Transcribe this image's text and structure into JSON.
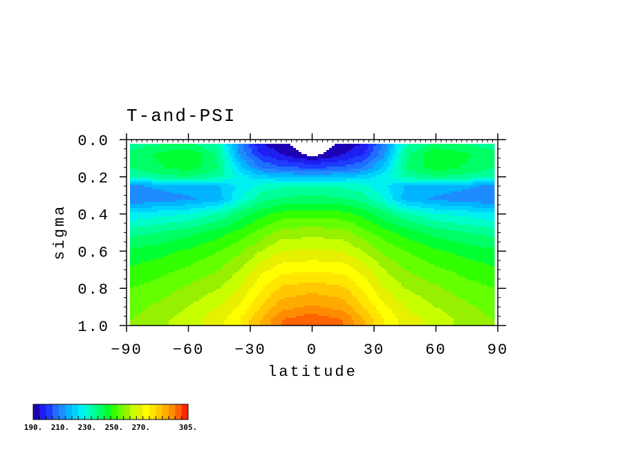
{
  "chart_data": {
    "type": "heatmap",
    "title": "T-and-PSI",
    "xlabel": "latitude",
    "ylabel": "sigma",
    "xlim": [
      -90,
      90
    ],
    "ylim": [
      1.0,
      0.0
    ],
    "x_ticks": [
      "−90",
      "−60",
      "−30",
      "0",
      "30",
      "60",
      "90"
    ],
    "y_ticks": [
      "0.0",
      "0.2",
      "0.4",
      "0.6",
      "0.8",
      "1.0"
    ],
    "y_tick_values": [
      0.0,
      0.2,
      0.4,
      0.6,
      0.8,
      1.0
    ],
    "x_tick_values": [
      -90,
      -60,
      -30,
      0,
      30,
      60,
      90
    ],
    "latitude": [
      -88,
      -75,
      -60,
      -45,
      -35,
      -25,
      -15,
      0,
      15,
      25,
      35,
      45,
      60,
      75,
      88
    ],
    "sigma": [
      0.03,
      0.08,
      0.15,
      0.2,
      0.25,
      0.32,
      0.4,
      0.5,
      0.6,
      0.7,
      0.8,
      0.9,
      0.97
    ],
    "temperature": [
      [
        238,
        240,
        242,
        234,
        212,
        196,
        192,
        185,
        192,
        196,
        212,
        234,
        242,
        240,
        238
      ],
      [
        242,
        246,
        250,
        238,
        214,
        200,
        195,
        188,
        195,
        200,
        214,
        238,
        250,
        246,
        242
      ],
      [
        240,
        244,
        248,
        240,
        222,
        210,
        206,
        204,
        206,
        210,
        222,
        240,
        248,
        244,
        240
      ],
      [
        236,
        238,
        240,
        236,
        228,
        222,
        220,
        219,
        220,
        222,
        228,
        236,
        240,
        238,
        236
      ],
      [
        214,
        216,
        218,
        220,
        226,
        232,
        234,
        234,
        234,
        232,
        226,
        220,
        218,
        216,
        214
      ],
      [
        210,
        212,
        214,
        218,
        230,
        238,
        241,
        242,
        241,
        238,
        230,
        218,
        214,
        212,
        210
      ],
      [
        226,
        228,
        230,
        236,
        242,
        248,
        252,
        253,
        252,
        248,
        242,
        236,
        230,
        228,
        226
      ],
      [
        238,
        240,
        243,
        248,
        252,
        257,
        262,
        263,
        262,
        257,
        252,
        248,
        243,
        240,
        238
      ],
      [
        246,
        248,
        251,
        255,
        259,
        265,
        270,
        271,
        270,
        265,
        259,
        255,
        251,
        248,
        246
      ],
      [
        251,
        253,
        256,
        260,
        265,
        273,
        278,
        279,
        278,
        273,
        265,
        260,
        256,
        253,
        251
      ],
      [
        255,
        257,
        261,
        265,
        270,
        279,
        286,
        288,
        286,
        279,
        270,
        265,
        261,
        257,
        255
      ],
      [
        258,
        261,
        265,
        270,
        276,
        285,
        293,
        296,
        293,
        285,
        276,
        270,
        265,
        261,
        258
      ],
      [
        260,
        263,
        268,
        273,
        280,
        290,
        300,
        304,
        300,
        290,
        280,
        273,
        268,
        263,
        260
      ]
    ],
    "colorbar": {
      "min": 190,
      "max": 305,
      "step": 5,
      "labels": [
        "190.",
        "210.",
        "230.",
        "250.",
        "270.",
        "305."
      ],
      "label_values": [
        190,
        210,
        230,
        250,
        270,
        305
      ],
      "colors": [
        "#1e00b4",
        "#1e1ef0",
        "#1e3cff",
        "#1e6eff",
        "#1e8cff",
        "#00b4ff",
        "#00d2ff",
        "#00f0f0",
        "#00ffc8",
        "#00ff96",
        "#00ff64",
        "#00ff32",
        "#32ff00",
        "#64ff00",
        "#96f000",
        "#c8ff00",
        "#e6f000",
        "#ffff00",
        "#ffe600",
        "#ffc800",
        "#ffaa00",
        "#ff8c00",
        "#ff6400",
        "#ff2800"
      ],
      "below_min_color": "#ffffff",
      "above_max_color": "#ffffff"
    }
  }
}
